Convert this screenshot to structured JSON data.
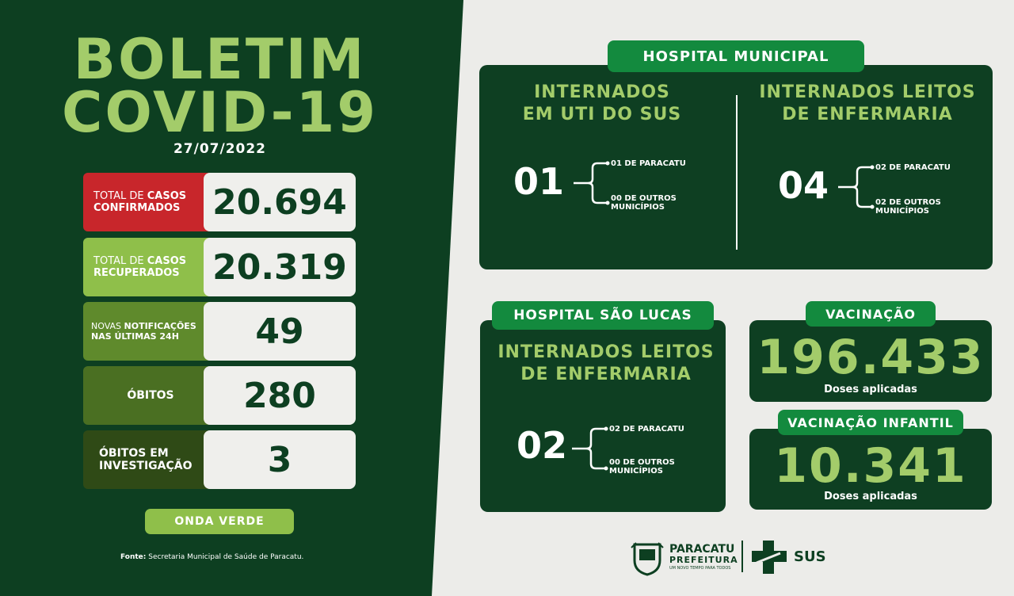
{
  "boletim": {
    "title_line1": "BOLETIM",
    "title_line2": "COVID-19",
    "date": "27/07/2022"
  },
  "stats": [
    {
      "label_pre": "TOTAL DE ",
      "label_bold": "CASOS",
      "label_line2": "CONFIRMADOS",
      "value": "20.694",
      "color": "#c8262b"
    },
    {
      "label_pre": "TOTAL DE ",
      "label_bold": "CASOS",
      "label_line2": "RECUPERADOS",
      "value": "20.319",
      "color": "#8fbf4a"
    },
    {
      "label_pre": "NOVAS ",
      "label_bold": "NOTIFICAÇÕES",
      "label_line2": "NAS ÚLTIMAS 24H",
      "value": "49",
      "color": "#5f8a2c"
    },
    {
      "label": "ÓBITOS",
      "value": "280",
      "color": "#4a6f22"
    },
    {
      "label_line1": "ÓBITOS EM",
      "label_line2": "INVESTIGAÇÃO",
      "value": "3",
      "color": "#2f4a16"
    }
  ],
  "onda": "ONDA VERDE",
  "fonte": {
    "bold": "Fonte:",
    "text": " Secretaria Municipal de Saúde de Paracatu."
  },
  "hospital_municipal": {
    "pill": "HOSPITAL MUNICIPAL",
    "uti": {
      "head_line1": "INTERNADOS",
      "head_line2": "EM UTI DO SUS",
      "total": "01",
      "sub1": "01 DE PARACATU",
      "sub2_line1": "00 DE OUTROS",
      "sub2_line2": "MUNICÍPIOS"
    },
    "enfermaria": {
      "head_line1": "INTERNADOS LEITOS",
      "head_line2": "DE ENFERMARIA",
      "total": "04",
      "sub1": "02 DE PARACATU",
      "sub2_line1": "02 DE OUTROS",
      "sub2_line2": "MUNICÍPIOS"
    }
  },
  "hospital_sao_lucas": {
    "pill": "HOSPITAL SÃO LUCAS",
    "head_line1": "INTERNADOS LEITOS",
    "head_line2": "DE ENFERMARIA",
    "total": "02",
    "sub1": "02 DE PARACATU",
    "sub2_line1": "00 DE OUTROS",
    "sub2_line2": "MUNICÍPIOS"
  },
  "vacinacao": {
    "pill": "VACINAÇÃO",
    "value": "196.433",
    "sub": "Doses aplicadas"
  },
  "vacinacao_infantil": {
    "pill": "VACINAÇÃO INFANTIL",
    "value": "10.341",
    "sub": "Doses aplicadas"
  },
  "footer_logos": {
    "paracatu": "PARACATU",
    "prefeitura": "PREFEITURA",
    "tagline": "UM NOVO TEMPO PARA TODOS",
    "sus": "SUS"
  }
}
